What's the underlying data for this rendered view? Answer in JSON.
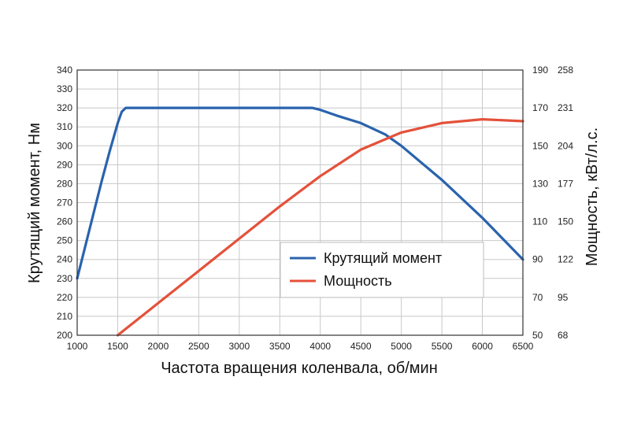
{
  "chart_data": {
    "type": "line",
    "xlabel": "Частота вращения коленвала, об/мин",
    "ylabel_left": "Крутящий момент, Нм",
    "ylabel_right": "Мощность, кВт/л.с.",
    "xlim": [
      1000,
      6500
    ],
    "ylim_left": [
      200,
      340
    ],
    "ylim_right_kw": [
      50,
      190
    ],
    "x_ticks": [
      "1000",
      "1500",
      "2000",
      "2500",
      "3000",
      "3500",
      "4000",
      "4500",
      "5000",
      "5500",
      "6000",
      "6500"
    ],
    "y_left_ticks": [
      "200",
      "210",
      "220",
      "230",
      "240",
      "250",
      "260",
      "270",
      "280",
      "290",
      "300",
      "310",
      "320",
      "330",
      "340"
    ],
    "y_right_kw_ticks": [
      "50",
      "70",
      "90",
      "110",
      "130",
      "150",
      "170",
      "190"
    ],
    "y_right_hp_ticks": [
      "68",
      "95",
      "122",
      "150",
      "177",
      "204",
      "231",
      "258"
    ],
    "grid": true,
    "legend_position": "center-right",
    "series": [
      {
        "name": "Крутящий момент",
        "axis": "left",
        "color": "#2a63ad",
        "x": [
          1000,
          1100,
          1200,
          1300,
          1400,
          1500,
          1550,
          1600,
          2000,
          2500,
          3000,
          3500,
          3900,
          4000,
          4200,
          4500,
          4800,
          5000,
          5500,
          6000,
          6500
        ],
        "y": [
          230,
          247,
          264,
          281,
          297,
          312,
          318,
          320,
          320,
          320,
          320,
          320,
          320,
          319,
          316,
          312,
          306,
          300,
          282,
          262,
          240
        ]
      },
      {
        "name": "Мощность",
        "axis": "right_kw",
        "color": "#e4513a",
        "x": [
          1500,
          2000,
          2500,
          3000,
          3500,
          4000,
          4500,
          5000,
          5500,
          6000,
          6500
        ],
        "y": [
          50,
          67,
          84,
          101,
          118,
          134,
          148,
          157,
          162,
          164,
          163
        ]
      }
    ]
  }
}
